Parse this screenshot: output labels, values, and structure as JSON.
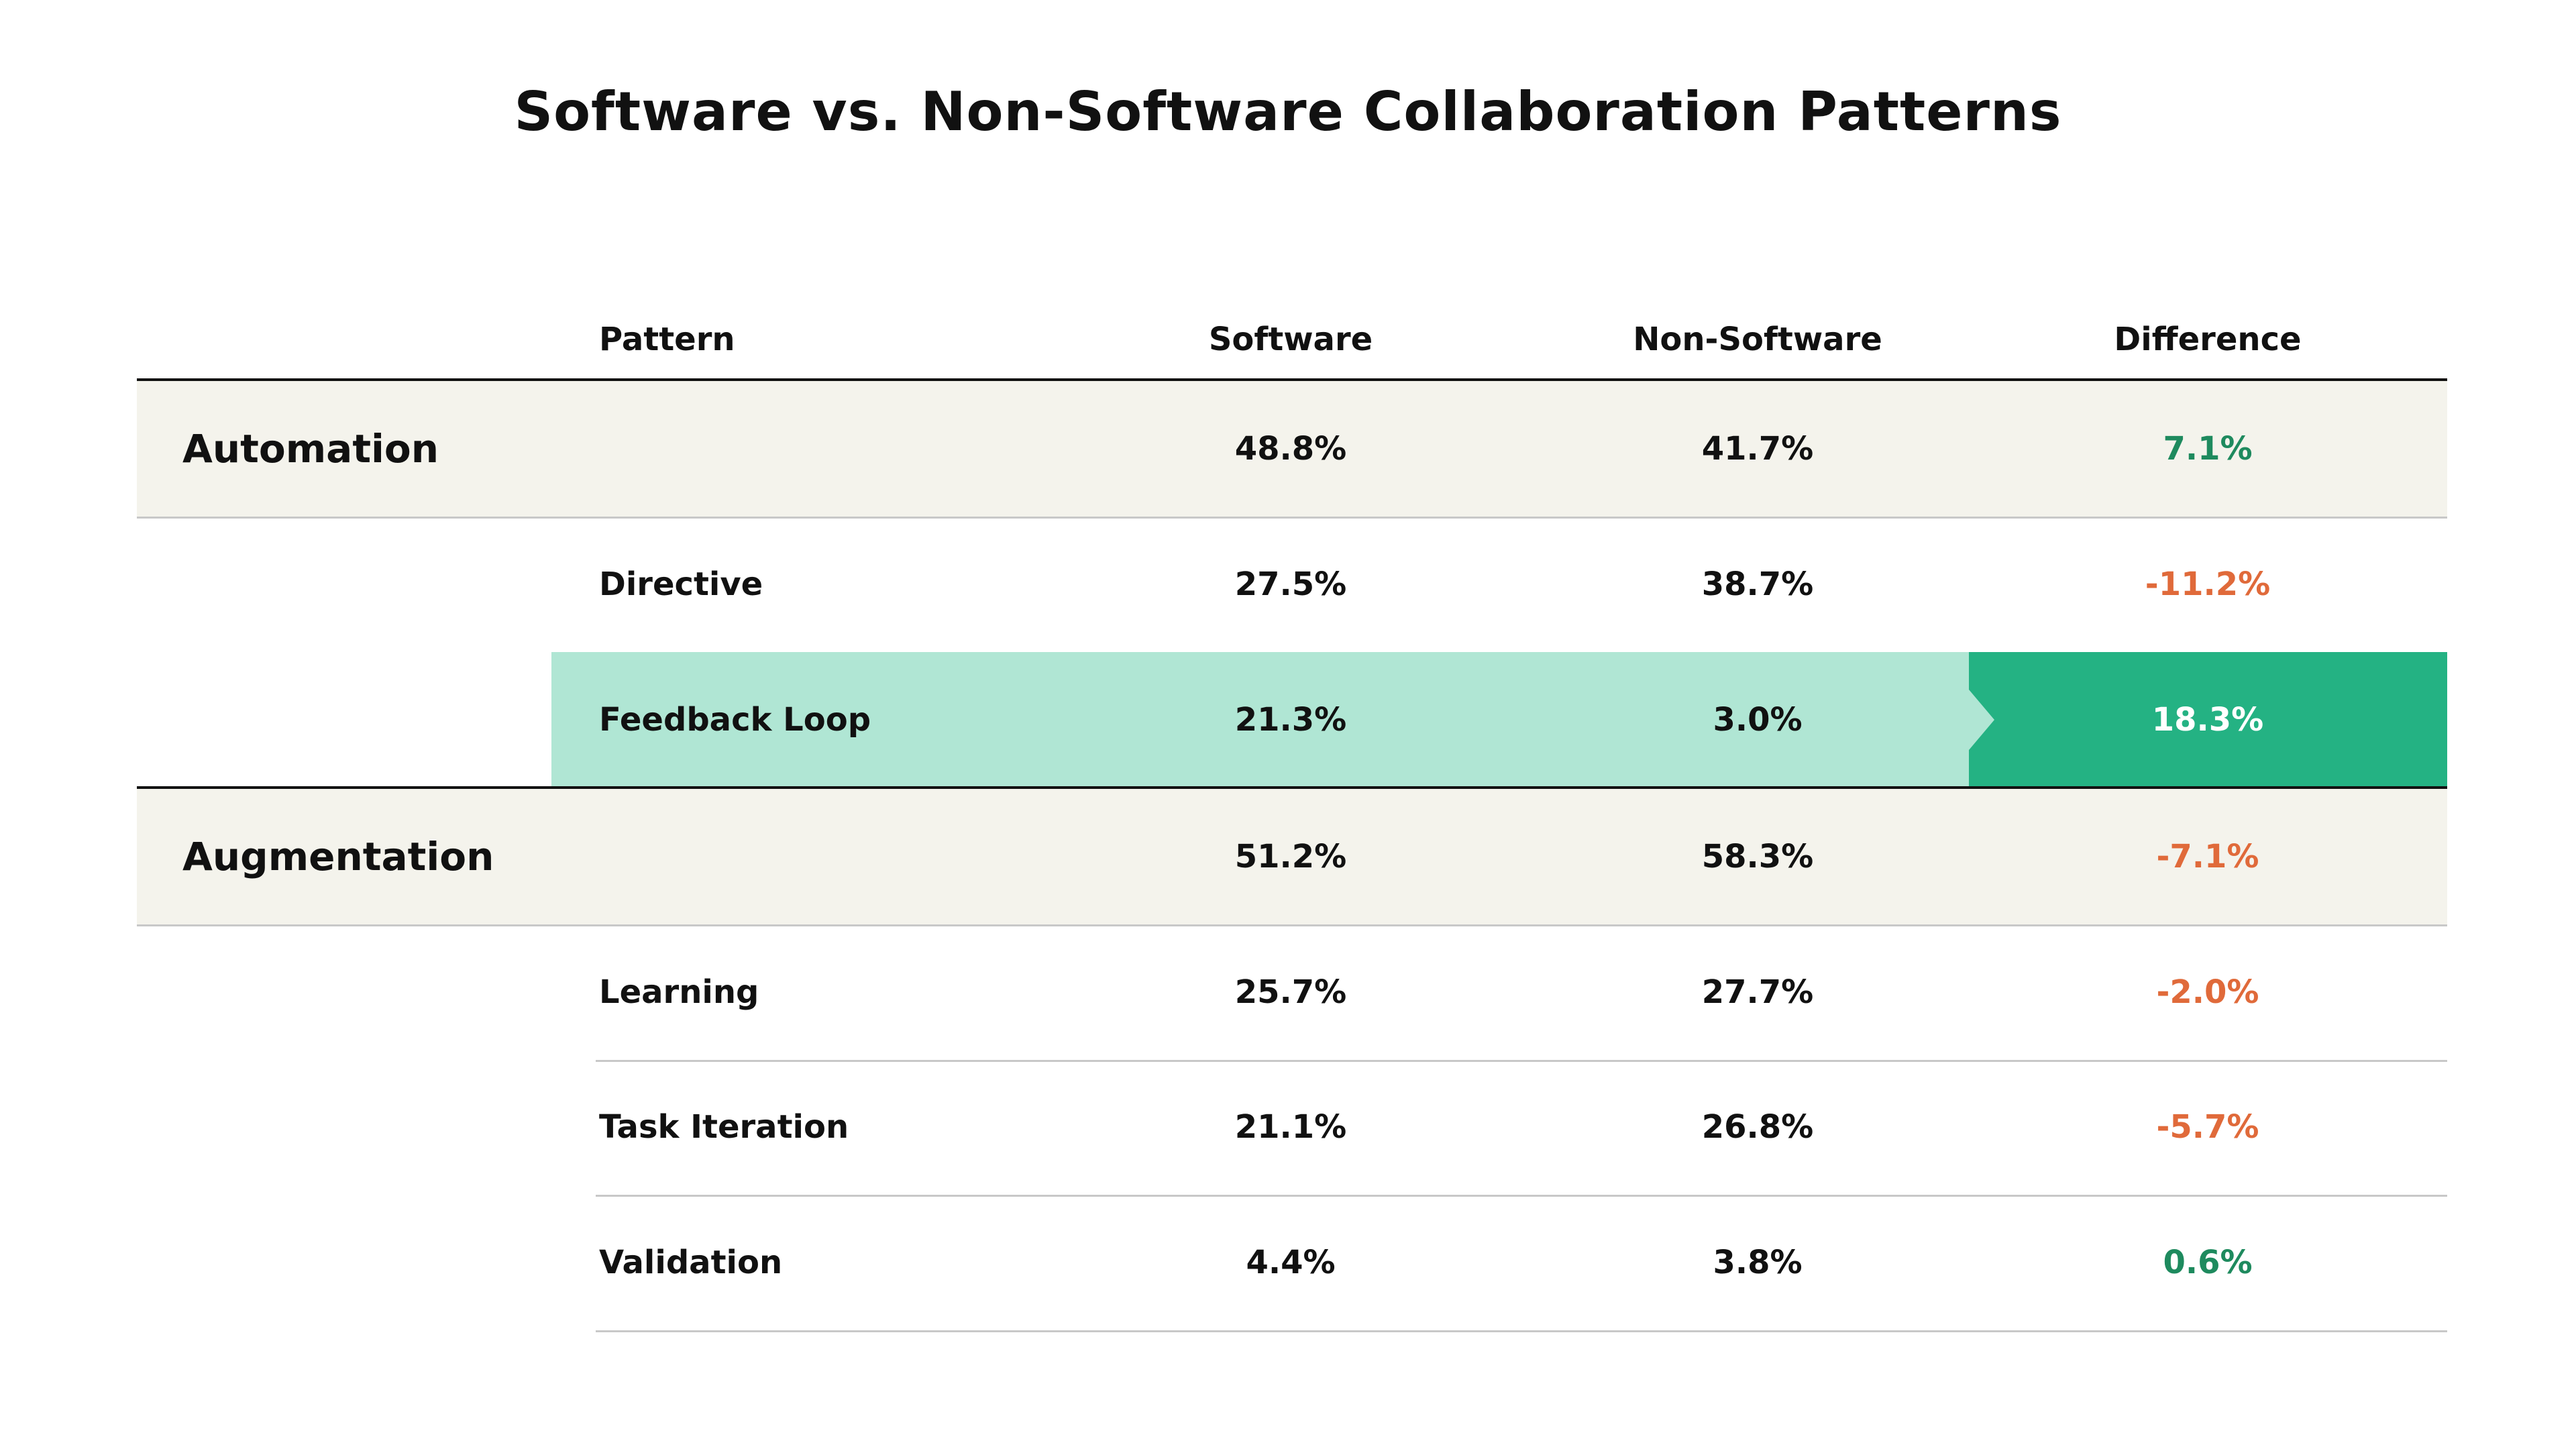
{
  "title": "Software vs. Non-Software Collaboration Patterns",
  "colors": {
    "positive": "#1E8A5E",
    "negative": "#E06A3A",
    "highlight_light": "#B0E6D4",
    "highlight_dark": "#24B283",
    "group_bg": "#F4F3EC"
  },
  "headers": {
    "pattern": "Pattern",
    "software": "Software",
    "non_software": "Non-Software",
    "difference": "Difference"
  },
  "rows": [
    {
      "type": "group",
      "label": "Automation",
      "software": "48.8%",
      "non_software": "41.7%",
      "difference": "7.1%",
      "sign": "positive"
    },
    {
      "type": "sub",
      "label": "Directive",
      "software": "27.5%",
      "non_software": "38.7%",
      "difference": "-11.2%",
      "sign": "negative"
    },
    {
      "type": "highlight",
      "label": "Feedback Loop",
      "software": "21.3%",
      "non_software": "3.0%",
      "difference": "18.3%",
      "sign": "positive"
    },
    {
      "type": "group",
      "label": "Augmentation",
      "software": "51.2%",
      "non_software": "58.3%",
      "difference": "-7.1%",
      "sign": "negative"
    },
    {
      "type": "sub",
      "label": "Learning",
      "software": "25.7%",
      "non_software": "27.7%",
      "difference": "-2.0%",
      "sign": "negative"
    },
    {
      "type": "sub",
      "label": "Task Iteration",
      "software": "21.1%",
      "non_software": "26.8%",
      "difference": "-5.7%",
      "sign": "negative"
    },
    {
      "type": "sub",
      "label": "Validation",
      "software": "4.4%",
      "non_software": "3.8%",
      "difference": "0.6%",
      "sign": "positive"
    }
  ]
}
